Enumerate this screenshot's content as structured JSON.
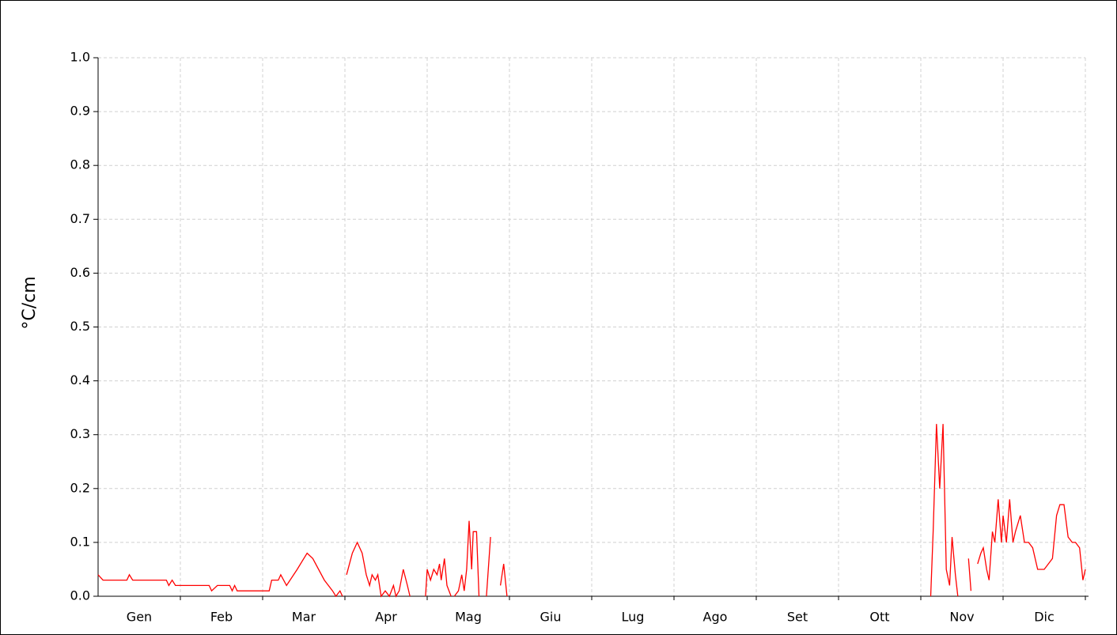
{
  "chart_data": {
    "type": "line",
    "ylabel": "°C/cm",
    "xlim": [
      0,
      12
    ],
    "xticks": [
      {
        "value": 0.5,
        "label": "Gen"
      },
      {
        "value": 1.5,
        "label": "Feb"
      },
      {
        "value": 2.5,
        "label": "Mar"
      },
      {
        "value": 3.5,
        "label": "Apr"
      },
      {
        "value": 4.5,
        "label": "Mag"
      },
      {
        "value": 5.5,
        "label": "Giu"
      },
      {
        "value": 6.5,
        "label": "Lug"
      },
      {
        "value": 7.5,
        "label": "Ago"
      },
      {
        "value": 8.5,
        "label": "Set"
      },
      {
        "value": 9.5,
        "label": "Ott"
      },
      {
        "value": 10.5,
        "label": "Nov"
      },
      {
        "value": 11.5,
        "label": "Dic"
      }
    ],
    "ylim": [
      0,
      1
    ],
    "yticks": [
      {
        "value": 0,
        "label": "0.0"
      },
      0.1,
      0.2,
      0.3,
      0.4,
      0.5,
      0.6,
      0.7,
      0.8,
      0.9,
      {
        "value": 1,
        "label": "1.0"
      }
    ],
    "grid": true,
    "series": [
      {
        "color": "#ff0000",
        "x": [
          0,
          0.06,
          0.11,
          0.35,
          0.38,
          0.42,
          0.83,
          0.86,
          0.9,
          0.94,
          1.35,
          1.38,
          1.45,
          1.6,
          1.63,
          1.66,
          1.69,
          1.74,
          2.08,
          2.11,
          2.19,
          2.22,
          2.29,
          2.42,
          2.54,
          2.61,
          2.75,
          2.85,
          2.89,
          2.94,
          2.97,
          null,
          3.02,
          3.09,
          3.15,
          3.21,
          3.26,
          3.3,
          3.33,
          3.37,
          3.4,
          3.44,
          3.49,
          3.54,
          3.59,
          3.62,
          3.66,
          3.71,
          3.76,
          3.79,
          null,
          3.98,
          4.0,
          4.04,
          4.08,
          4.12,
          4.15,
          4.17,
          4.21,
          4.24,
          4.29,
          null,
          4.33,
          4.38,
          4.42,
          4.45,
          4.48,
          4.51,
          4.54,
          4.56,
          4.6,
          4.63,
          null,
          4.72,
          4.77,
          null,
          4.89,
          4.93,
          4.97,
          null,
          10.12,
          10.15,
          10.19,
          10.23,
          10.27,
          10.31,
          10.35,
          10.38,
          10.42,
          10.45,
          null,
          10.58,
          10.61,
          null,
          10.69,
          10.73,
          10.76,
          10.8,
          10.83,
          10.87,
          10.9,
          10.94,
          10.98,
          11.0,
          11.04,
          11.08,
          11.12,
          11.15,
          11.21,
          11.26,
          11.31,
          11.36,
          11.42,
          11.5,
          11.55,
          11.6,
          11.65,
          11.69,
          11.74,
          11.79,
          11.84,
          11.88,
          11.93,
          11.97,
          12.0
        ],
        "values": [
          0.04,
          0.03,
          0.03,
          0.03,
          0.04,
          0.03,
          0.03,
          0.02,
          0.03,
          0.02,
          0.02,
          0.01,
          0.02,
          0.02,
          0.01,
          0.02,
          0.01,
          0.01,
          0.01,
          0.03,
          0.03,
          0.04,
          0.02,
          0.05,
          0.08,
          0.07,
          0.03,
          0.01,
          0,
          0.01,
          0,
          null,
          0.04,
          0.08,
          0.1,
          0.08,
          0.04,
          0.02,
          0.04,
          0.03,
          0.04,
          0,
          0.01,
          0,
          0.02,
          0,
          0.01,
          0.05,
          0.02,
          0,
          null,
          0,
          0.05,
          0.03,
          0.05,
          0.04,
          0.06,
          0.03,
          0.07,
          0.02,
          0,
          null,
          0,
          0.01,
          0.04,
          0.01,
          0.05,
          0.14,
          0.05,
          0.12,
          0.12,
          0,
          null,
          0,
          0.11,
          null,
          0.02,
          0.06,
          0,
          null,
          0,
          0.12,
          0.32,
          0.2,
          0.32,
          0.05,
          0.02,
          0.11,
          0.04,
          0,
          null,
          0.07,
          0.01,
          null,
          0.06,
          0.08,
          0.09,
          0.05,
          0.03,
          0.12,
          0.1,
          0.18,
          0.1,
          0.15,
          0.1,
          0.18,
          0.1,
          0.12,
          0.15,
          0.1,
          0.1,
          0.09,
          0.05,
          0.05,
          0.06,
          0.07,
          0.15,
          0.17,
          0.17,
          0.11,
          0.1,
          0.1,
          0.09,
          0.03,
          0.05
        ]
      }
    ]
  }
}
